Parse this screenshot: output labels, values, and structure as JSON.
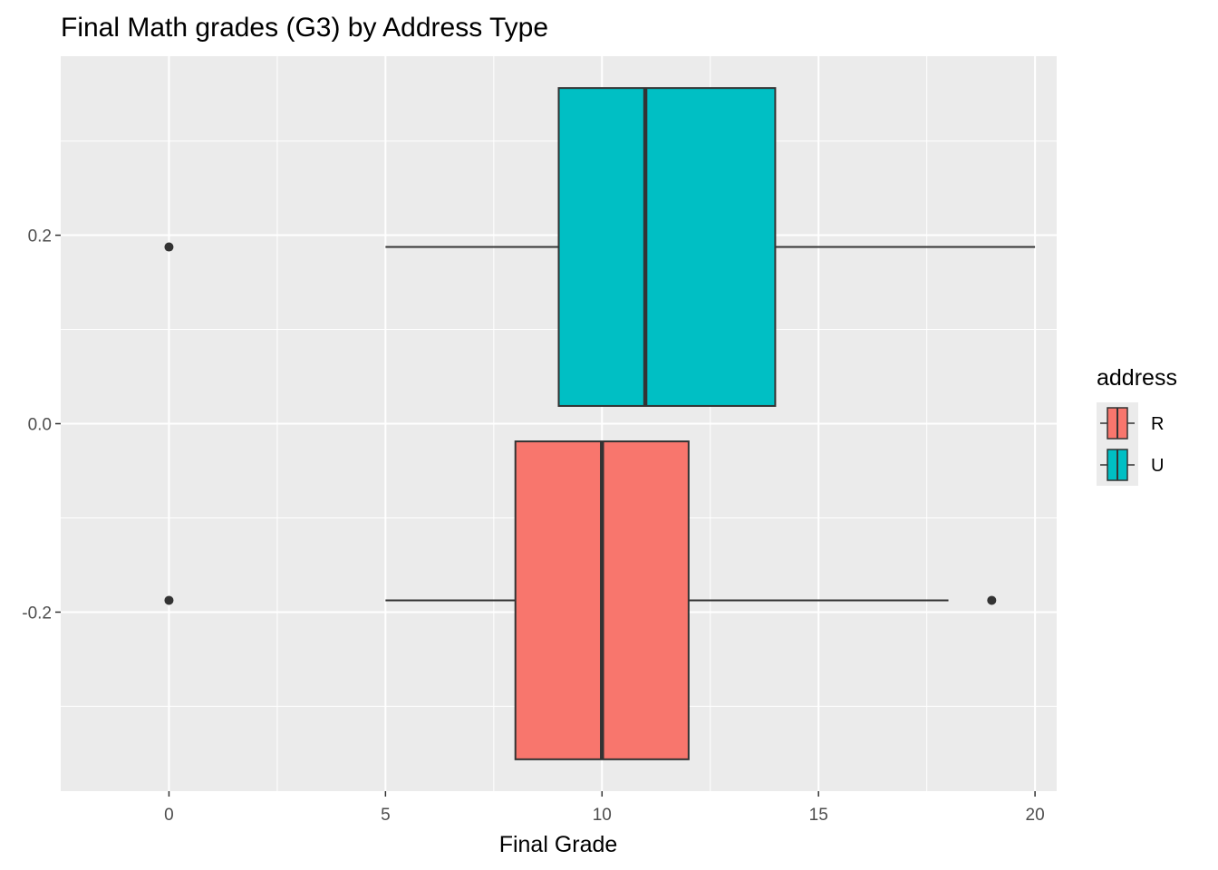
{
  "chart_data": {
    "type": "boxplot",
    "orientation": "horizontal",
    "title": "Final Math grades (G3) by Address Type",
    "xlabel": "Final Grade",
    "ylabel": "",
    "xlim": [
      -2.5,
      20.5
    ],
    "ylim": [
      -0.39,
      0.39
    ],
    "x_ticks": [
      0,
      5,
      10,
      15,
      20
    ],
    "x_tick_labels": [
      "0",
      "5",
      "10",
      "15",
      "20"
    ],
    "y_ticks": [
      0.2,
      0.0,
      -0.2
    ],
    "y_tick_labels": [
      "0.2",
      "0.0",
      "-0.2"
    ],
    "grid": true,
    "legend": {
      "title": "address",
      "placement": "right",
      "entries": [
        {
          "label": "R",
          "color": "#F8766D"
        },
        {
          "label": "U",
          "color": "#00BFC4"
        }
      ]
    },
    "series": [
      {
        "name": "R",
        "color": "#F8766D",
        "y_center": -0.1875,
        "y_range": [
          -0.3562,
          -0.0188
        ],
        "whisker_low": 5,
        "q1": 8,
        "median": 10,
        "q3": 12,
        "whisker_high": 18,
        "outliers": [
          0,
          19
        ]
      },
      {
        "name": "U",
        "color": "#00BFC4",
        "y_center": 0.1875,
        "y_range": [
          0.0188,
          0.3562
        ],
        "whisker_low": 5,
        "q1": 9,
        "median": 11,
        "q3": 14,
        "whisker_high": 20,
        "outliers": [
          0
        ]
      }
    ]
  }
}
